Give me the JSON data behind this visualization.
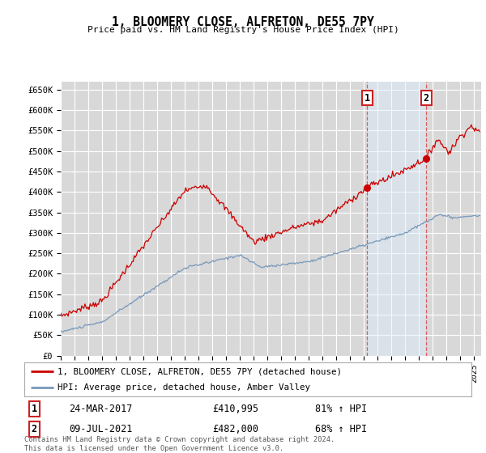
{
  "title": "1, BLOOMERY CLOSE, ALFRETON, DE55 7PY",
  "subtitle": "Price paid vs. HM Land Registry's House Price Index (HPI)",
  "ylim": [
    0,
    670000
  ],
  "yticks": [
    0,
    50000,
    100000,
    150000,
    200000,
    250000,
    300000,
    350000,
    400000,
    450000,
    500000,
    550000,
    600000,
    650000
  ],
  "ytick_labels": [
    "£0",
    "£50K",
    "£100K",
    "£150K",
    "£200K",
    "£250K",
    "£300K",
    "£350K",
    "£400K",
    "£450K",
    "£500K",
    "£550K",
    "£600K",
    "£650K"
  ],
  "xlim_start": 1995.0,
  "xlim_end": 2025.5,
  "background_color": "#ffffff",
  "plot_bg_color": "#d8d8d8",
  "grid_color": "#ffffff",
  "red_line_color": "#cc0000",
  "blue_line_color": "#7799bb",
  "sale1_x": 2017.23,
  "sale1_y": 410995,
  "sale1_label": "1",
  "sale1_date": "24-MAR-2017",
  "sale1_price": "£410,995",
  "sale1_hpi": "81% ↑ HPI",
  "sale2_x": 2021.52,
  "sale2_y": 482000,
  "sale2_label": "2",
  "sale2_date": "09-JUL-2021",
  "sale2_price": "£482,000",
  "sale2_hpi": "68% ↑ HPI",
  "legend_label1": "1, BLOOMERY CLOSE, ALFRETON, DE55 7PY (detached house)",
  "legend_label2": "HPI: Average price, detached house, Amber Valley",
  "footer": "Contains HM Land Registry data © Crown copyright and database right 2024.\nThis data is licensed under the Open Government Licence v3.0.",
  "shade_color": "#ddeeff"
}
